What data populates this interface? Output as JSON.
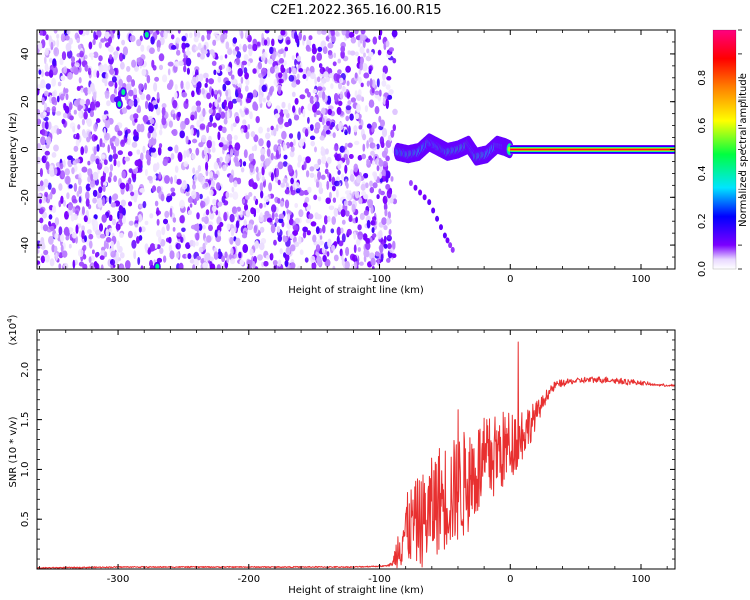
{
  "title": "C2E1.2022.365.16.00.R15",
  "chart_data": [
    {
      "type": "heatmap",
      "xlabel": "Height of straight line (km)",
      "ylabel": "Frequency (Hz)",
      "xlim": [
        -362,
        126
      ],
      "ylim": [
        -50,
        50
      ],
      "xticks": [
        -300,
        -200,
        -100,
        0,
        100
      ],
      "yticks": [
        -40,
        -20,
        0,
        20,
        40
      ],
      "xtick_labels": [
        "-300",
        "-200",
        "-100",
        "0",
        "100"
      ],
      "ytick_labels": [
        "-40",
        "-20",
        "0",
        "20",
        "40"
      ],
      "colorbar": {
        "label": "Normalized spectral amplitude",
        "range": [
          0,
          1
        ],
        "ticks": [
          0.0,
          0.2,
          0.4,
          0.6,
          0.8
        ],
        "tick_labels": [
          "0.0",
          "0.2",
          "0.4",
          "0.6",
          "0.8"
        ],
        "colors": [
          "#ffffff",
          "#7b00ff",
          "#0000ff",
          "#00e5ff",
          "#00ff40",
          "#ffff00",
          "#ff8000",
          "#ff0000",
          "#ff0080"
        ]
      },
      "features": {
        "noise_region_x": [
          -362,
          -88
        ],
        "clean_band": {
          "x": [
            -88,
            126
          ],
          "frequency_hz": 0
        },
        "bright_line": {
          "x": [
            0,
            126
          ],
          "frequency_hz": 0
        },
        "wobble_trace": [
          [
            -86,
            -1
          ],
          [
            -78,
            -2
          ],
          [
            -70,
            -1
          ],
          [
            -62,
            3
          ],
          [
            -55,
            1
          ],
          [
            -48,
            -1
          ],
          [
            -40,
            0
          ],
          [
            -32,
            2
          ],
          [
            -26,
            -3
          ],
          [
            -18,
            -2
          ],
          [
            -10,
            2
          ],
          [
            -4,
            1
          ],
          [
            0,
            0
          ]
        ],
        "descending_branch": [
          [
            -76,
            -14
          ],
          [
            -62,
            -22
          ],
          [
            -50,
            -36
          ],
          [
            -42,
            -44
          ]
        ],
        "bright_spots": [
          [
            -278,
            48
          ],
          [
            -296,
            24
          ],
          [
            -299,
            19
          ],
          [
            -270,
            -49
          ]
        ]
      }
    },
    {
      "type": "line",
      "xlabel": "Height of straight line (km)",
      "ylabel": "SNR (10 * v/v)",
      "y_multiplier": "(x10^4)",
      "xlim": [
        -362,
        126
      ],
      "ylim": [
        0,
        2.4
      ],
      "xticks": [
        -300,
        -200,
        -100,
        0,
        100
      ],
      "yticks": [
        0.5,
        1.0,
        1.5,
        2.0
      ],
      "xtick_labels": [
        "-300",
        "-200",
        "-100",
        "0",
        "100"
      ],
      "ytick_labels": [
        "0.5",
        "1.0",
        "1.5",
        "2.0"
      ],
      "color": "#e83030",
      "series": [
        {
          "x": [
            -362,
            -300,
            -200,
            -120,
            -96,
            -90,
            -85,
            -82,
            -75,
            -65,
            -55,
            -45,
            -35,
            -25,
            -15,
            -5,
            0,
            8,
            15,
            22,
            28,
            35,
            45,
            60,
            75,
            90,
            100,
            110,
            126
          ],
          "y": [
            0.01,
            0.02,
            0.02,
            0.02,
            0.03,
            0.05,
            0.25,
            0.35,
            0.45,
            0.5,
            0.7,
            0.75,
            0.85,
            1.0,
            1.1,
            1.2,
            1.25,
            1.35,
            1.45,
            1.6,
            1.75,
            1.85,
            1.88,
            1.9,
            1.9,
            1.88,
            1.87,
            1.85,
            1.84
          ],
          "noise_amplitude": [
            0,
            0,
            0,
            0,
            0,
            0.02,
            0.25,
            0.35,
            0.4,
            0.5,
            0.55,
            0.55,
            0.55,
            0.5,
            0.45,
            0.4,
            0.35,
            0.3,
            0.2,
            0.1,
            0.06,
            0.04,
            0.03,
            0.03,
            0.03,
            0.03,
            0.02,
            0.01,
            0.01
          ],
          "spikes": [
            [
              -40,
              1.6
            ],
            [
              -18,
              1.5
            ],
            [
              -12,
              1.35
            ],
            [
              6,
              2.28
            ],
            [
              10,
              1.3
            ]
          ]
        }
      ]
    }
  ]
}
